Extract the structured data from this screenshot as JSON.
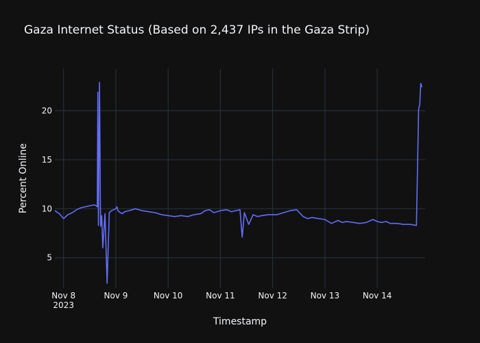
{
  "chart_data": {
    "type": "line",
    "title": "Gaza Internet Status (Based on 2,437 IPs in the Gaza Strip)",
    "xlabel": "Timestamp",
    "ylabel": "Percent Online",
    "x_ticks": [
      "Nov 8",
      "Nov 9",
      "Nov 10",
      "Nov 11",
      "Nov 12",
      "Nov 13",
      "Nov 14"
    ],
    "x_tick_sublabel": "2023",
    "y_ticks": [
      5,
      10,
      15,
      20
    ],
    "xlim": [
      "2023-11-07 20:00",
      "2023-11-14 22:00"
    ],
    "ylim": [
      1.9,
      24.3
    ],
    "grid": true,
    "legend": "none",
    "colors": {
      "background": "#111111",
      "grid": "#283442",
      "line": "#636efa",
      "text": "#f2f5fa"
    },
    "series": [
      {
        "x": [
          "2023-11-07 20:00",
          "2023-11-07 22:00",
          "2023-11-08 00:00",
          "2023-11-08 02:00",
          "2023-11-08 04:00",
          "2023-11-08 06:00",
          "2023-11-08 08:00",
          "2023-11-08 10:00",
          "2023-11-08 12:00",
          "2023-11-08 14:00",
          "2023-11-08 15:00",
          "2023-11-08 15:30",
          "2023-11-08 15:45",
          "2023-11-08 16:00",
          "2023-11-08 16:30",
          "2023-11-08 17:00",
          "2023-11-08 17:15",
          "2023-11-08 17:30",
          "2023-11-08 18:00",
          "2023-11-08 19:00",
          "2023-11-08 20:00",
          "2023-11-08 21:00",
          "2023-11-08 22:00",
          "2023-11-08 23:00",
          "2023-11-09 00:00",
          "2023-11-09 00:30",
          "2023-11-09 01:00",
          "2023-11-09 02:00",
          "2023-11-09 03:00",
          "2023-11-09 04:00",
          "2023-11-09 06:00",
          "2023-11-09 09:00",
          "2023-11-09 12:00",
          "2023-11-09 15:00",
          "2023-11-09 18:00",
          "2023-11-09 21:00",
          "2023-11-10 00:00",
          "2023-11-10 03:00",
          "2023-11-10 06:00",
          "2023-11-10 09:00",
          "2023-11-10 12:00",
          "2023-11-10 15:00",
          "2023-11-10 17:00",
          "2023-11-10 19:00",
          "2023-11-10 21:00",
          "2023-11-11 00:00",
          "2023-11-11 03:00",
          "2023-11-11 05:00",
          "2023-11-11 07:00",
          "2023-11-11 09:00",
          "2023-11-11 10:00",
          "2023-11-11 11:00",
          "2023-11-11 13:00",
          "2023-11-11 15:00",
          "2023-11-11 17:00",
          "2023-11-11 19:00",
          "2023-11-11 22:00",
          "2023-11-12 02:00",
          "2023-11-12 05:00",
          "2023-11-12 08:00",
          "2023-11-12 11:00",
          "2023-11-12 14:00",
          "2023-11-12 16:00",
          "2023-11-12 18:00",
          "2023-11-12 21:00",
          "2023-11-13 00:00",
          "2023-11-13 03:00",
          "2023-11-13 06:00",
          "2023-11-13 08:00",
          "2023-11-13 10:00",
          "2023-11-13 13:00",
          "2023-11-13 16:00",
          "2023-11-13 19:00",
          "2023-11-13 22:00",
          "2023-11-14 00:00",
          "2023-11-14 02:00",
          "2023-11-14 04:00",
          "2023-11-14 06:00",
          "2023-11-14 09:00",
          "2023-11-14 12:00",
          "2023-11-14 15:00",
          "2023-11-14 18:00",
          "2023-11-14 19:00",
          "2023-11-14 19:30",
          "2023-11-14 20:00",
          "2023-11-14 20:30"
        ],
        "y": [
          9.8,
          9.5,
          9.0,
          9.4,
          9.6,
          9.9,
          10.1,
          10.2,
          10.3,
          10.4,
          10.3,
          10.2,
          21.9,
          8.3,
          22.9,
          8.2,
          8.6,
          9.3,
          6.0,
          9.5,
          2.4,
          9.6,
          9.8,
          9.9,
          10.0,
          10.2,
          9.8,
          9.6,
          9.5,
          9.7,
          9.8,
          10.0,
          9.8,
          9.7,
          9.6,
          9.4,
          9.3,
          9.2,
          9.3,
          9.2,
          9.4,
          9.5,
          9.8,
          9.9,
          9.6,
          9.8,
          9.9,
          9.7,
          9.8,
          9.9,
          7.1,
          9.6,
          8.4,
          9.4,
          9.2,
          9.3,
          9.4,
          9.4,
          9.6,
          9.8,
          9.9,
          9.2,
          9.0,
          9.1,
          9.0,
          8.9,
          8.5,
          8.8,
          8.6,
          8.7,
          8.6,
          8.5,
          8.6,
          8.9,
          8.7,
          8.6,
          8.7,
          8.5,
          8.5,
          8.4,
          8.4,
          8.3,
          20.2,
          20.6,
          22.8,
          22.4
        ]
      }
    ]
  }
}
